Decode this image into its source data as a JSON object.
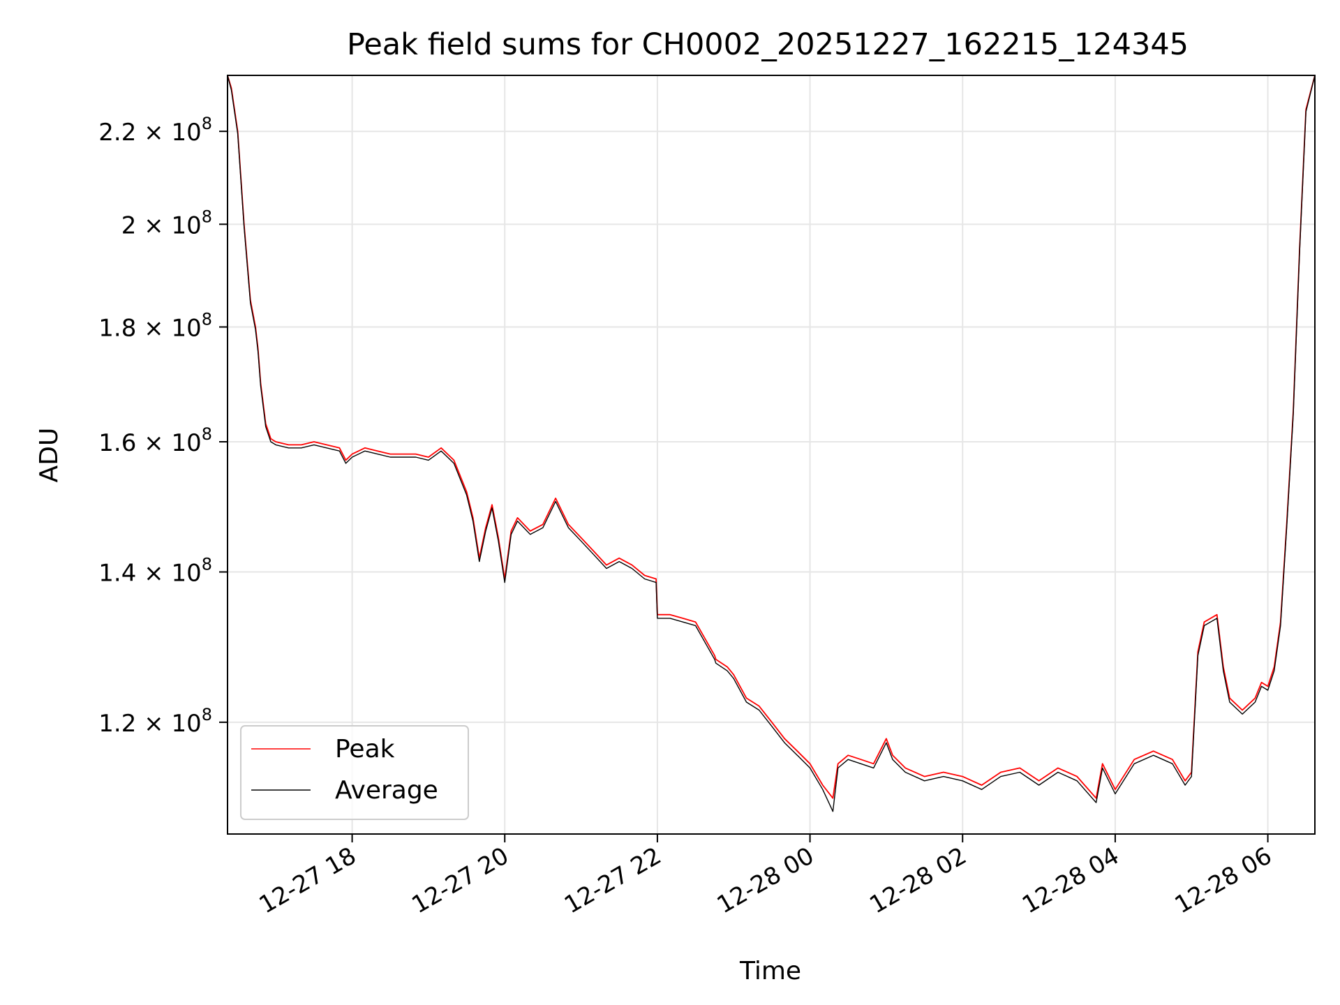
{
  "chart_data": {
    "type": "line",
    "title": "Peak field sums for CH0002_20251227_162215_124345",
    "xlabel": "Time",
    "ylabel": "ADU",
    "yscale": "log",
    "grid": true,
    "legend_position": "lower-left",
    "xlim": [
      "2025-12-27 16:22",
      "2025-12-28 06:37"
    ],
    "ylim": [
      107000000,
      233000000
    ],
    "x_ticks": [
      {
        "value": "2025-12-27 18:00",
        "label": "12-27 18"
      },
      {
        "value": "2025-12-27 20:00",
        "label": "12-27 20"
      },
      {
        "value": "2025-12-27 22:00",
        "label": "12-27 22"
      },
      {
        "value": "2025-12-28 00:00",
        "label": "12-28 00"
      },
      {
        "value": "2025-12-28 02:00",
        "label": "12-28 02"
      },
      {
        "value": "2025-12-28 04:00",
        "label": "12-28 04"
      },
      {
        "value": "2025-12-28 06:00",
        "label": "12-28 06"
      }
    ],
    "y_ticks": [
      {
        "value": 120000000,
        "mantissa": "1.2",
        "exp": "8"
      },
      {
        "value": 140000000,
        "mantissa": "1.4",
        "exp": "8"
      },
      {
        "value": 160000000,
        "mantissa": "1.6",
        "exp": "8"
      },
      {
        "value": 180000000,
        "mantissa": "1.8",
        "exp": "8"
      },
      {
        "value": 200000000,
        "mantissa": "2",
        "exp": "8"
      },
      {
        "value": 220000000,
        "mantissa": "2.2",
        "exp": "8"
      }
    ],
    "x": [
      "2025-12-27 16:22",
      "2025-12-27 16:25",
      "2025-12-27 16:30",
      "2025-12-27 16:35",
      "2025-12-27 16:40",
      "2025-12-27 16:44",
      "2025-12-27 16:46",
      "2025-12-27 16:48",
      "2025-12-27 16:52",
      "2025-12-27 16:56",
      "2025-12-27 17:00",
      "2025-12-27 17:10",
      "2025-12-27 17:20",
      "2025-12-27 17:30",
      "2025-12-27 17:40",
      "2025-12-27 17:50",
      "2025-12-27 17:55",
      "2025-12-27 18:00",
      "2025-12-27 18:10",
      "2025-12-27 18:20",
      "2025-12-27 18:30",
      "2025-12-27 18:40",
      "2025-12-27 18:50",
      "2025-12-27 19:00",
      "2025-12-27 19:10",
      "2025-12-27 19:20",
      "2025-12-27 19:30",
      "2025-12-27 19:35",
      "2025-12-27 19:40",
      "2025-12-27 19:45",
      "2025-12-27 19:50",
      "2025-12-27 19:55",
      "2025-12-27 20:00",
      "2025-12-27 20:05",
      "2025-12-27 20:10",
      "2025-12-27 20:20",
      "2025-12-27 20:30",
      "2025-12-27 20:40",
      "2025-12-27 20:50",
      "2025-12-27 21:00",
      "2025-12-27 21:10",
      "2025-12-27 21:20",
      "2025-12-27 21:30",
      "2025-12-27 21:40",
      "2025-12-27 21:50",
      "2025-12-27 21:59",
      "2025-12-27 22:00",
      "2025-12-27 22:10",
      "2025-12-27 22:20",
      "2025-12-27 22:30",
      "2025-12-27 22:45",
      "2025-12-27 22:46",
      "2025-12-27 22:55",
      "2025-12-27 23:00",
      "2025-12-27 23:10",
      "2025-12-27 23:20",
      "2025-12-27 23:30",
      "2025-12-27 23:40",
      "2025-12-27 23:50",
      "2025-12-28 00:00",
      "2025-12-28 00:10",
      "2025-12-28 00:18",
      "2025-12-28 00:22",
      "2025-12-28 00:30",
      "2025-12-28 00:40",
      "2025-12-28 00:50",
      "2025-12-28 01:00",
      "2025-12-28 01:05",
      "2025-12-28 01:15",
      "2025-12-28 01:30",
      "2025-12-28 01:45",
      "2025-12-28 02:00",
      "2025-12-28 02:15",
      "2025-12-28 02:30",
      "2025-12-28 02:45",
      "2025-12-28 03:00",
      "2025-12-28 03:15",
      "2025-12-28 03:30",
      "2025-12-28 03:45",
      "2025-12-28 03:50",
      "2025-12-28 04:00",
      "2025-12-28 04:15",
      "2025-12-28 04:30",
      "2025-12-28 04:45",
      "2025-12-28 04:55",
      "2025-12-28 05:00",
      "2025-12-28 05:05",
      "2025-12-28 05:10",
      "2025-12-28 05:20",
      "2025-12-28 05:25",
      "2025-12-28 05:30",
      "2025-12-28 05:40",
      "2025-12-28 05:50",
      "2025-12-28 05:55",
      "2025-12-28 06:00",
      "2025-12-28 06:05",
      "2025-12-28 06:10",
      "2025-12-28 06:15",
      "2025-12-28 06:20",
      "2025-12-28 06:25",
      "2025-12-28 06:30",
      "2025-12-28 06:37"
    ],
    "series": [
      {
        "name": "Peak",
        "color": "#ff0000",
        "values": [
          233000000,
          230000000,
          220000000,
          200000000,
          185000000,
          180000000,
          176000000,
          170000000,
          163000000,
          160500000,
          160000000,
          159500000,
          159500000,
          160000000,
          159500000,
          159000000,
          157000000,
          158000000,
          159000000,
          158500000,
          158000000,
          158000000,
          158000000,
          157500000,
          159000000,
          157000000,
          152000000,
          148000000,
          142000000,
          146500000,
          150000000,
          145000000,
          139000000,
          146000000,
          148000000,
          146000000,
          147000000,
          151000000,
          147000000,
          145000000,
          143000000,
          141000000,
          142000000,
          141000000,
          139500000,
          139000000,
          134000000,
          134000000,
          133500000,
          133000000,
          128500000,
          128000000,
          127000000,
          126000000,
          123000000,
          122000000,
          120000000,
          118000000,
          116500000,
          115000000,
          112500000,
          111000000,
          115000000,
          116000000,
          115500000,
          115000000,
          118000000,
          116000000,
          114500000,
          113500000,
          114000000,
          113500000,
          112500000,
          114000000,
          114500000,
          113000000,
          114500000,
          113500000,
          111000000,
          115000000,
          112000000,
          115500000,
          116500000,
          115500000,
          113000000,
          114000000,
          129000000,
          133000000,
          134000000,
          127000000,
          123000000,
          121500000,
          123000000,
          125000000,
          124500000,
          127000000,
          133000000,
          147500000,
          165000000,
          195000000,
          225000000,
          233000000
        ]
      },
      {
        "name": "Average",
        "color": "#000000",
        "values": [
          233000000,
          229500000,
          219500000,
          199500000,
          184500000,
          179500000,
          175500000,
          169500000,
          162500000,
          160000000,
          159500000,
          159000000,
          159000000,
          159500000,
          159000000,
          158500000,
          156500000,
          157500000,
          158500000,
          158000000,
          157500000,
          157500000,
          157500000,
          157000000,
          158500000,
          156500000,
          151500000,
          147500000,
          141500000,
          146000000,
          149500000,
          144500000,
          138500000,
          145500000,
          147500000,
          145500000,
          146500000,
          150500000,
          146500000,
          144500000,
          142500000,
          140500000,
          141500000,
          140500000,
          139000000,
          138500000,
          133500000,
          133500000,
          133000000,
          132500000,
          128000000,
          127500000,
          126500000,
          125500000,
          122500000,
          121500000,
          119500000,
          117500000,
          116000000,
          114500000,
          112000000,
          109500000,
          114500000,
          115500000,
          115000000,
          114500000,
          117500000,
          115500000,
          114000000,
          113000000,
          113500000,
          113000000,
          112000000,
          113500000,
          114000000,
          112500000,
          114000000,
          113000000,
          110500000,
          114500000,
          111500000,
          115000000,
          116000000,
          115000000,
          112500000,
          113500000,
          128500000,
          132500000,
          133500000,
          126500000,
          122500000,
          121000000,
          122500000,
          124500000,
          124000000,
          126500000,
          132500000,
          147000000,
          164500000,
          194500000,
          224500000,
          233000000
        ]
      }
    ]
  }
}
